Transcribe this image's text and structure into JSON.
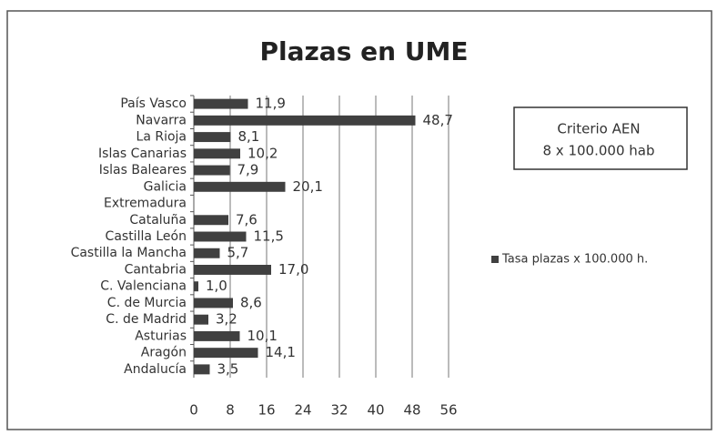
{
  "chart_data": {
    "type": "bar",
    "orientation": "horizontal",
    "title": "Plazas en UME",
    "categories": [
      "País Vasco",
      "Navarra",
      "La Rioja",
      "Islas Canarias",
      "Islas Baleares",
      "Galicia",
      "Extremadura",
      "Cataluña",
      "Castilla León",
      "Castilla la Mancha",
      "Cantabria",
      "C. Valenciana",
      "C. de Murcia",
      "C. de Madrid",
      "Asturias",
      "Aragón",
      "Andalucía"
    ],
    "series": [
      {
        "name": "Tasa plazas x 100.000 h.",
        "color": "#404040",
        "values": [
          11.9,
          48.7,
          8.1,
          10.2,
          7.9,
          20.1,
          null,
          7.6,
          11.5,
          5.7,
          17.0,
          1.0,
          8.6,
          3.2,
          10.1,
          14.1,
          3.5
        ],
        "value_labels": [
          "11,9",
          "48,7",
          "8,1",
          "10,2",
          "7,9",
          "20,1",
          null,
          "7,6",
          "11,5",
          "5,7",
          "17,0",
          "1,0",
          "8,6",
          "3,2",
          "10,1",
          "14,1",
          "3,5"
        ]
      }
    ],
    "xlim": [
      0,
      56
    ],
    "xticks": [
      0,
      8,
      16,
      24,
      32,
      40,
      48,
      56
    ],
    "grid": true,
    "legend": "right",
    "annotation": [
      "Criterio AEN",
      "8 x 100.000 hab"
    ]
  }
}
